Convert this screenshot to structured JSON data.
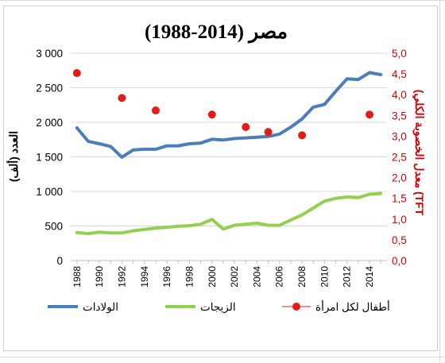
{
  "chart_data": {
    "type": "line",
    "title": "مصر (2014-1988)",
    "ylabel": "العدد (ألف)",
    "y2label": "TFT) معدل الخصوبة الكلي)",
    "ylim": [
      0,
      3000
    ],
    "y2lim": [
      0,
      5
    ],
    "yticks": [
      "0",
      "500",
      "1 000",
      "1 500",
      "2 000",
      "2 500",
      "3 000"
    ],
    "y2ticks": [
      "0,0",
      "0,5",
      "1,0",
      "1,5",
      "2,0",
      "2,5",
      "3,0",
      "3,5",
      "4,0",
      "4,5",
      "5,0"
    ],
    "xticks": [
      "1988",
      "1990",
      "1992",
      "1994",
      "1996",
      "1998",
      "2000",
      "2002",
      "2004",
      "2006",
      "2008",
      "2010",
      "2012",
      "2014"
    ],
    "grid": true,
    "legend_position": "bottom",
    "x": [
      1988,
      1989,
      1990,
      1991,
      1992,
      1993,
      1994,
      1995,
      1996,
      1997,
      1998,
      1999,
      2000,
      2001,
      2002,
      2003,
      2004,
      2005,
      2006,
      2007,
      2008,
      2009,
      2010,
      2011,
      2012,
      2013,
      2014,
      2015
    ],
    "series": [
      {
        "name": "الولادات",
        "kind": "line",
        "axis": "left",
        "color": "#4a7ebb",
        "values": [
          1920,
          1725,
          1690,
          1650,
          1495,
          1600,
          1610,
          1610,
          1660,
          1660,
          1690,
          1700,
          1755,
          1745,
          1765,
          1775,
          1785,
          1795,
          1830,
          1930,
          2050,
          2220,
          2260,
          2450,
          2630,
          2620,
          2720,
          2690
        ]
      },
      {
        "name": "الزيجات",
        "kind": "line",
        "axis": "left",
        "color": "#92d050",
        "values": [
          405,
          390,
          410,
          400,
          400,
          430,
          450,
          470,
          480,
          495,
          505,
          525,
          595,
          455,
          510,
          525,
          540,
          510,
          510,
          585,
          660,
          760,
          860,
          900,
          920,
          910,
          960,
          970
        ]
      },
      {
        "name": "أطفال لكل امرأة",
        "kind": "scatter",
        "axis": "right",
        "color": "#e41b17",
        "points": [
          [
            1988,
            4.52
          ],
          [
            1992,
            3.92
          ],
          [
            1995,
            3.62
          ],
          [
            2000,
            3.52
          ],
          [
            2003,
            3.22
          ],
          [
            2005,
            3.1
          ],
          [
            2008,
            3.02
          ],
          [
            2014,
            3.52
          ]
        ]
      }
    ]
  }
}
